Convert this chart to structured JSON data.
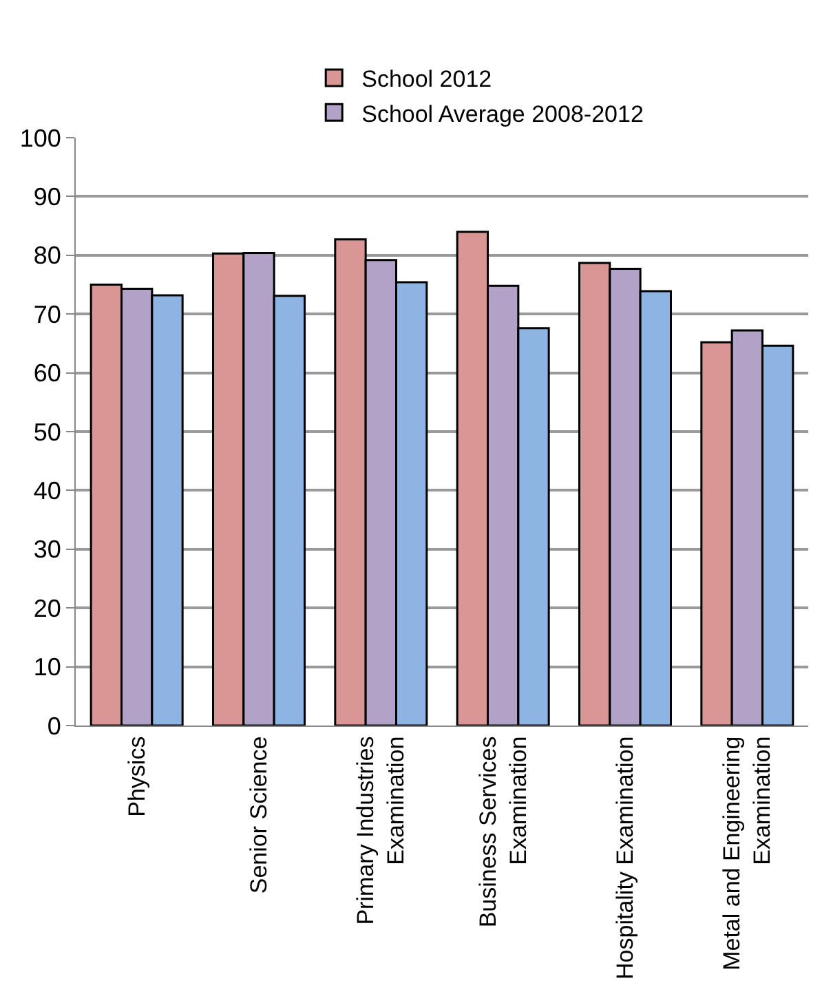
{
  "chart_data": {
    "type": "bar",
    "categories": [
      "Physics",
      "Senior Science",
      "Primary Industries Examination",
      "Business Services Examination",
      "Hospitality Examination",
      "Metal and Engineering Examination"
    ],
    "series": [
      {
        "name": "School 2012",
        "color": "#d99694",
        "values": [
          75.0,
          80.3,
          82.7,
          84.0,
          78.7,
          65.2
        ]
      },
      {
        "name": "School Average 2008-2012",
        "color": "#b3a2c7",
        "values": [
          74.3,
          80.4,
          79.2,
          74.8,
          77.7,
          67.2
        ]
      },
      {
        "color": "#8eb4e3",
        "values": [
          73.2,
          73.1,
          75.4,
          67.6,
          73.9,
          64.6
        ]
      }
    ],
    "ylim": [
      0,
      100
    ],
    "yticks": [
      0,
      10,
      20,
      30,
      40,
      50,
      60,
      70,
      80,
      90,
      100
    ],
    "grid": "y",
    "legend": "top"
  }
}
